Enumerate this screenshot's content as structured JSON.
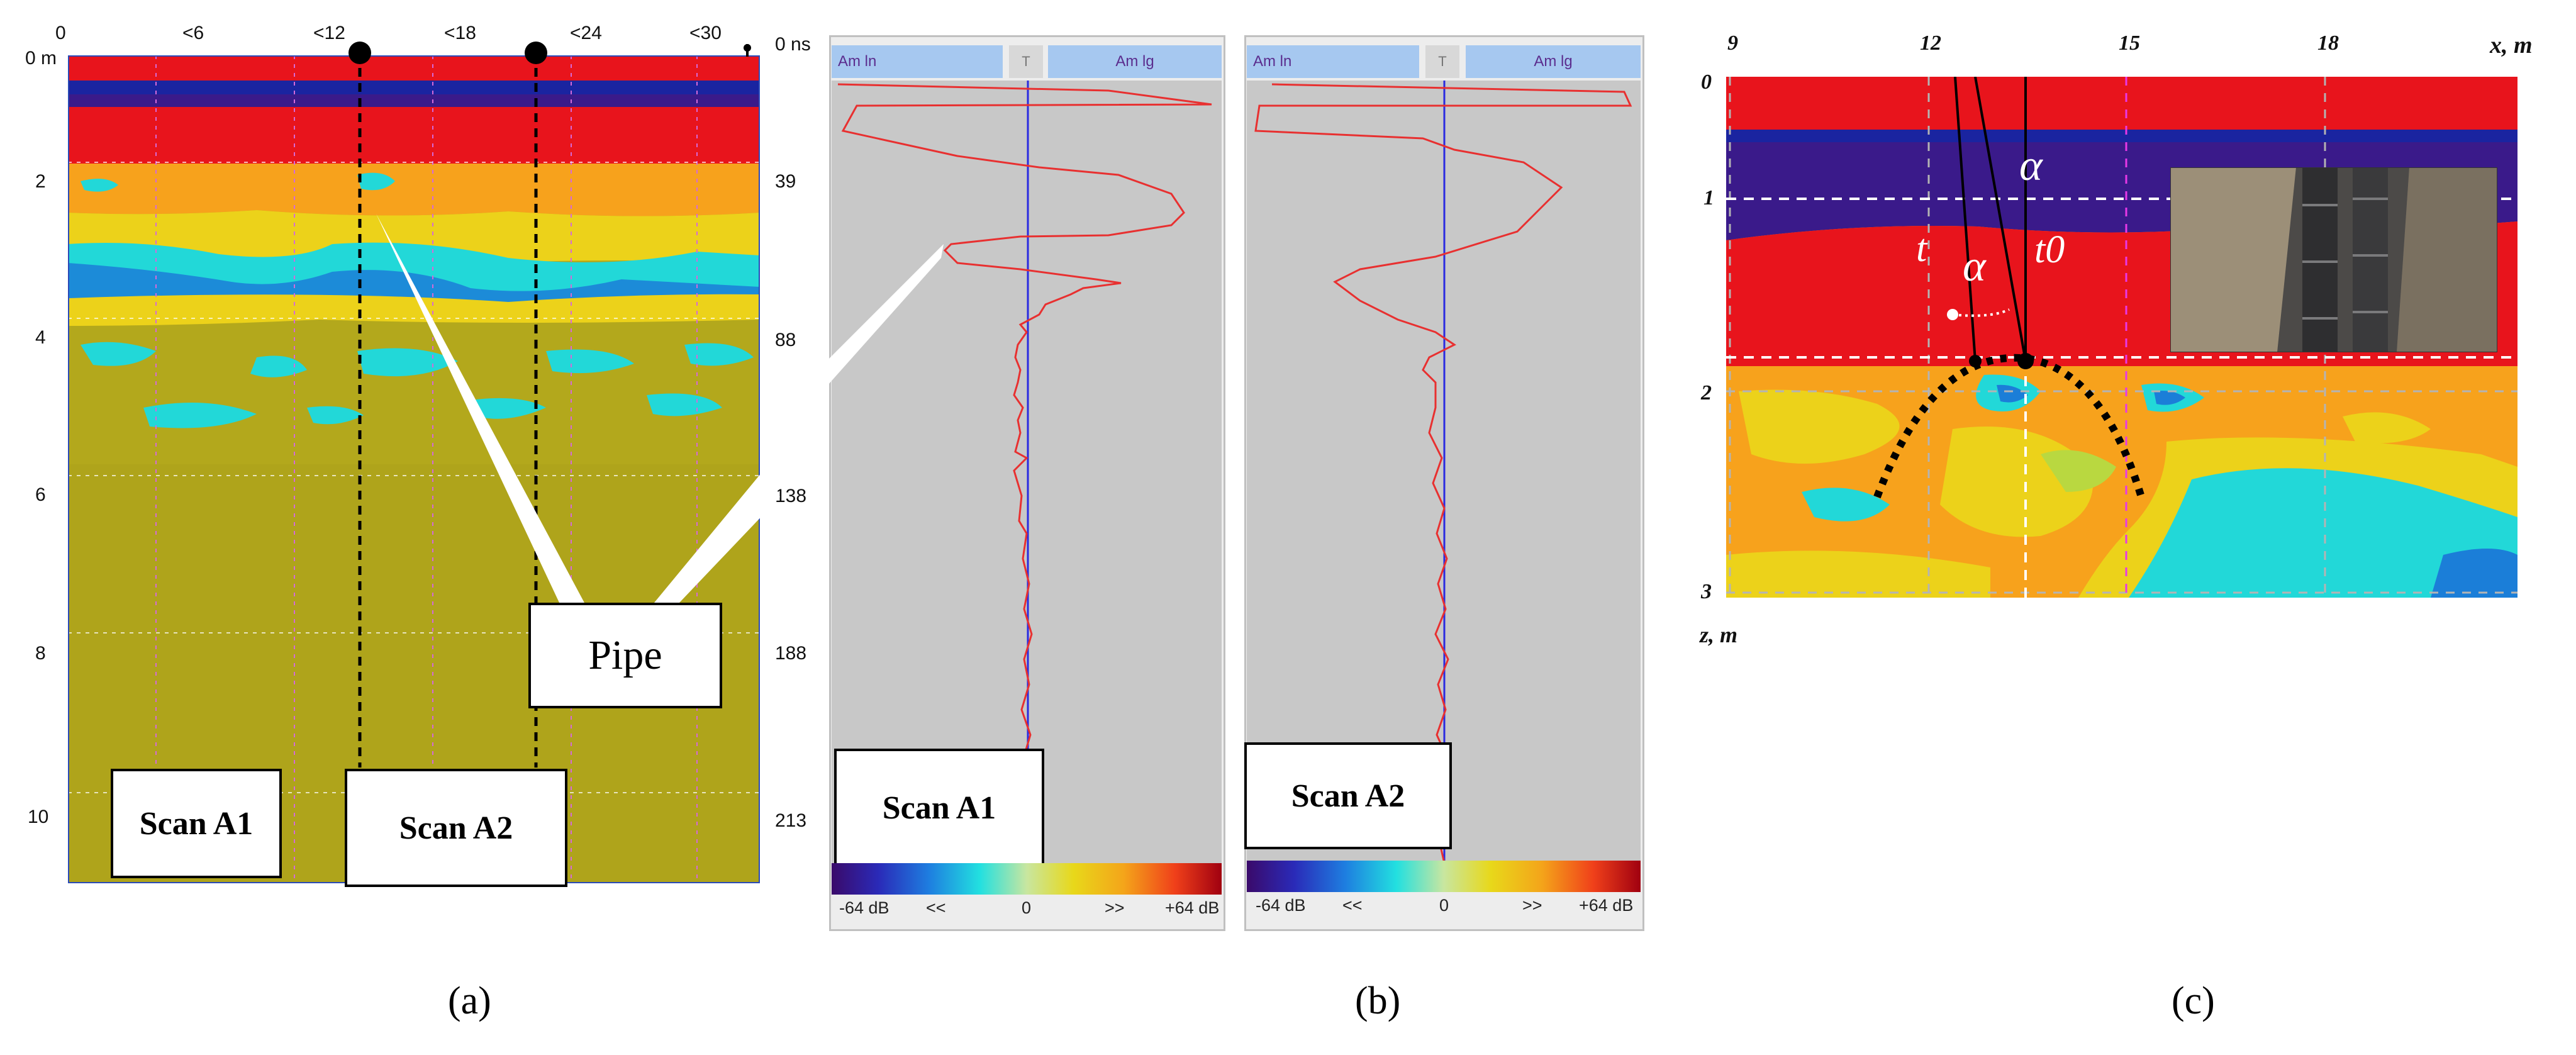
{
  "panel_a": {
    "top_ticks": [
      "0",
      "<6",
      "<12",
      "<18",
      "<24",
      "<30"
    ],
    "left_ticks": [
      "0 m",
      "2",
      "4",
      "6",
      "8",
      "10"
    ],
    "right_ticks": [
      "0 ns",
      "39",
      "88",
      "138",
      "188",
      "213"
    ],
    "pipe_label": "Pipe",
    "scan_a1_label": "Scan A1",
    "scan_a2_label": "Scan A2",
    "caption": "(a)"
  },
  "panel_b": {
    "left_trace": {
      "header_left": "Am ln",
      "header_mid": "T",
      "header_right": "Am lg",
      "scan_label": "Scan A1",
      "scale_min": "-64 dB",
      "scale_left_arrow": "<<",
      "scale_mid": "0",
      "scale_right_arrow": ">>",
      "scale_max": "+64 dB"
    },
    "right_trace": {
      "header_left": "Am ln",
      "header_mid": "T",
      "header_right": "Am lg",
      "scan_label": "Scan A2",
      "scale_min": "-64 dB",
      "scale_left_arrow": "<<",
      "scale_mid": "0",
      "scale_right_arrow": ">>",
      "scale_max": "+64 dB"
    },
    "caption": "(b)"
  },
  "panel_c": {
    "x_ticks": [
      "9",
      "12",
      "15",
      "18"
    ],
    "x_axis_label": "x, m",
    "z_ticks": [
      "0",
      "1",
      "2",
      "3"
    ],
    "z_axis_label": "z, m",
    "alpha_upper": "α",
    "alpha_lower": "α",
    "t_label": "t",
    "t0_label": "t0",
    "caption": "(c)"
  },
  "colors": {
    "red": "#e8141c",
    "purple": "#3a1a8a",
    "orange": "#f7a21c",
    "yellow": "#ecd21a",
    "cyan": "#1ad8c8",
    "olive": "#b7ac1c",
    "blue": "#1b7ed8"
  }
}
